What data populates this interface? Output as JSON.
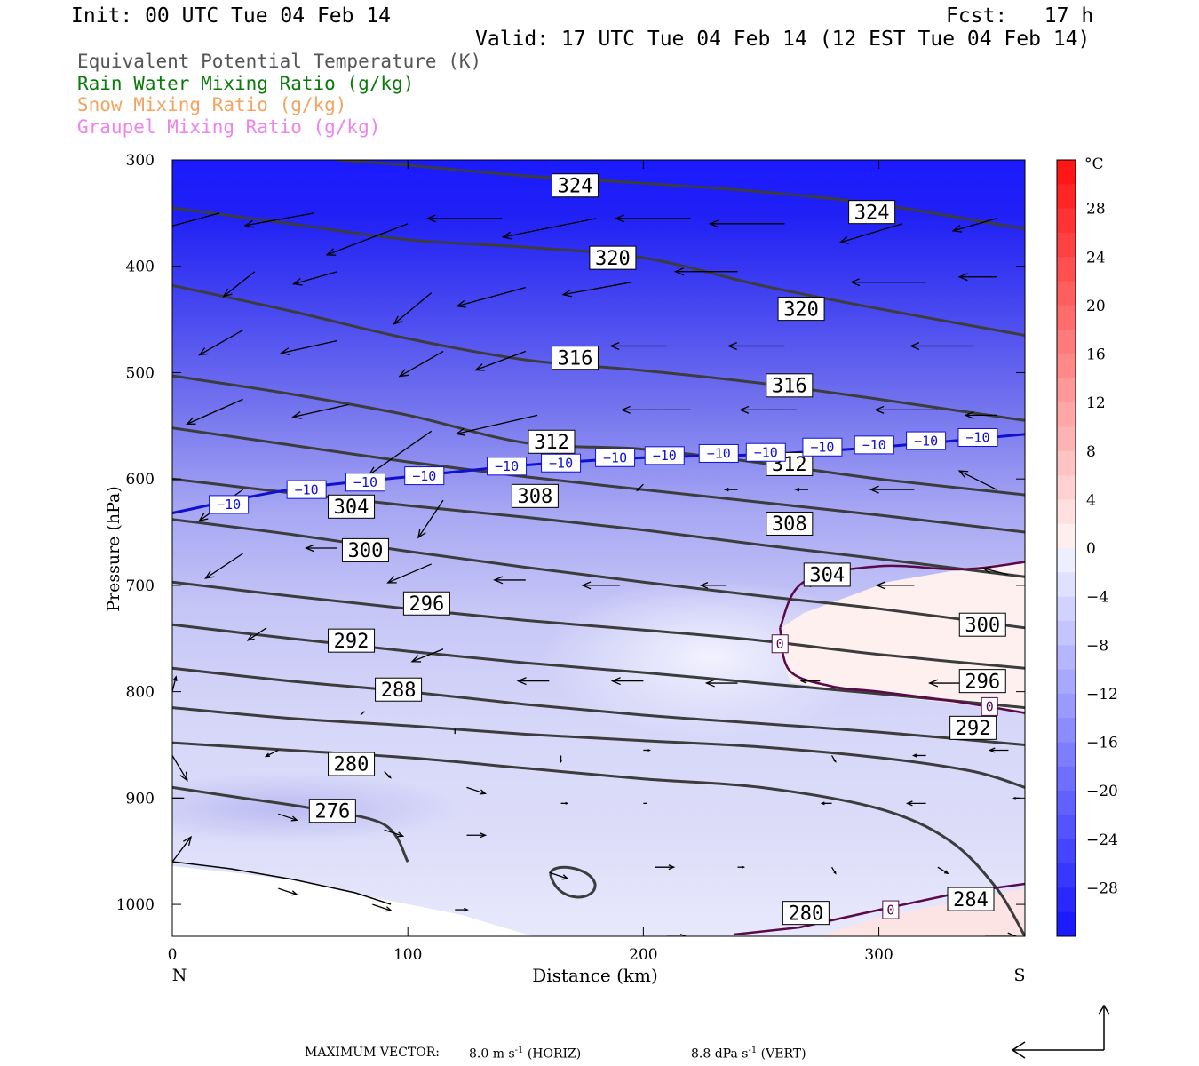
{
  "header": {
    "init": "Init: 00 UTC Tue 04 Feb 14",
    "fcst": "Fcst:   17 h",
    "valid": "Valid: 17 UTC Tue 04 Feb 14 (12 EST Tue 04 Feb 14)"
  },
  "legend": [
    {
      "text": "Equivalent Potential Temperature (K)",
      "color": "#555555"
    },
    {
      "text": "Rain Water Mixing Ratio (g/kg)",
      "color": "#0a7a0a"
    },
    {
      "text": "Snow Mixing Ratio (g/kg)",
      "color": "#f4a460"
    },
    {
      "text": "Graupel Mixing Ratio (g/kg)",
      "color": "#ee82ee"
    }
  ],
  "footer": {
    "max_vector_label": "MAXIMUM VECTOR:",
    "horiz_value": "8.0 m s",
    "horiz_unit": " (HORIZ)",
    "vert_value": "8.8 dPa s",
    "vert_unit": " (VERT)",
    "exponent": "-1"
  },
  "chart_data": {
    "type": "cross-section",
    "xlabel": "Distance (km)",
    "ylabel": "Pressure (hPa)",
    "xlim": [
      0,
      362
    ],
    "ylim": [
      1030,
      300
    ],
    "xticks": [
      0,
      100,
      200,
      300
    ],
    "yticks": [
      300,
      400,
      500,
      600,
      700,
      800,
      900,
      1000
    ],
    "x_endpoints": {
      "left": "N",
      "right": "S"
    },
    "colorbar": {
      "unit": "°C",
      "ticks": [
        28,
        24,
        20,
        16,
        12,
        8,
        4,
        0,
        -4,
        -8,
        -12,
        -16,
        -20,
        -24,
        -28
      ],
      "range": [
        -32,
        32
      ]
    },
    "theta_e_contours": [
      {
        "level": 276,
        "x": [
          0,
          30,
          60,
          90,
          100
        ],
        "p": [
          890,
          900,
          910,
          925,
          960
        ]
      },
      {
        "level": 280,
        "x": [
          0,
          50,
          100,
          150,
          200,
          250,
          300,
          330,
          350,
          362
        ],
        "p": [
          848,
          855,
          862,
          872,
          882,
          890,
          910,
          940,
          985,
          1030
        ]
      },
      {
        "level": 284,
        "x": [
          0,
          50,
          100,
          150,
          200,
          250,
          300,
          340,
          362
        ],
        "p": [
          815,
          825,
          832,
          840,
          846,
          852,
          862,
          875,
          890
        ]
      },
      {
        "level": 288,
        "x": [
          0,
          50,
          100,
          150,
          200,
          250,
          300,
          362
        ],
        "p": [
          778,
          790,
          800,
          812,
          822,
          830,
          838,
          850
        ]
      },
      {
        "level": 292,
        "x": [
          0,
          50,
          100,
          150,
          200,
          250,
          300,
          362
        ],
        "p": [
          737,
          750,
          762,
          773,
          782,
          792,
          802,
          815
        ]
      },
      {
        "level": 296,
        "x": [
          0,
          50,
          100,
          150,
          200,
          250,
          300,
          362
        ],
        "p": [
          697,
          710,
          722,
          733,
          742,
          752,
          765,
          778
        ]
      },
      {
        "level": 300,
        "x": [
          0,
          50,
          100,
          150,
          200,
          250,
          300,
          362
        ],
        "p": [
          638,
          652,
          668,
          683,
          697,
          710,
          722,
          740
        ]
      },
      {
        "level": 304,
        "x": [
          0,
          50,
          100,
          150,
          200,
          250,
          300,
          362
        ],
        "p": [
          600,
          613,
          625,
          636,
          648,
          662,
          675,
          692
        ]
      },
      {
        "level": 308,
        "x": [
          0,
          50,
          100,
          150,
          200,
          250,
          300,
          362
        ],
        "p": [
          552,
          568,
          584,
          598,
          610,
          622,
          634,
          650
        ]
      },
      {
        "level": 312,
        "x": [
          0,
          50,
          100,
          150,
          200,
          250,
          300,
          362
        ],
        "p": [
          503,
          520,
          540,
          566,
          572,
          585,
          600,
          615
        ]
      },
      {
        "level": 316,
        "x": [
          0,
          50,
          100,
          150,
          200,
          250,
          300,
          362
        ],
        "p": [
          418,
          442,
          468,
          488,
          498,
          510,
          525,
          545
        ]
      },
      {
        "level": 320,
        "x": [
          0,
          50,
          100,
          150,
          200,
          250,
          300,
          362
        ],
        "p": [
          345,
          360,
          375,
          382,
          392,
          418,
          440,
          465
        ]
      },
      {
        "level": 324,
        "x": [
          70,
          100,
          150,
          200,
          250,
          300,
          362
        ],
        "p": [
          300,
          305,
          315,
          322,
          330,
          342,
          365
        ]
      }
    ],
    "isotherm_minus10": {
      "level": -10,
      "x": [
        0,
        50,
        100,
        150,
        200,
        250,
        300,
        362
      ],
      "p": [
        632,
        610,
        598,
        587,
        580,
        577,
        570,
        558
      ]
    },
    "isotherm_zero": {
      "level": 0,
      "x": [
        258,
        268,
        300,
        335,
        362
      ],
      "p": [
        740,
        697,
        682,
        685,
        678
      ]
    },
    "isotherm_zero_lower": {
      "level": 0,
      "x": [
        258,
        262,
        280,
        300,
        335,
        362
      ],
      "p": [
        740,
        780,
        795,
        800,
        810,
        820
      ]
    },
    "contour_labels": [
      {
        "text": "324",
        "x": 171,
        "p": 324
      },
      {
        "text": "324",
        "x": 297,
        "p": 349
      },
      {
        "text": "320",
        "x": 187,
        "p": 392
      },
      {
        "text": "320",
        "x": 267,
        "p": 440
      },
      {
        "text": "316",
        "x": 171,
        "p": 486
      },
      {
        "text": "316",
        "x": 262,
        "p": 512
      },
      {
        "text": "312",
        "x": 161,
        "p": 565
      },
      {
        "text": "312",
        "x": 262,
        "p": 586
      },
      {
        "text": "308",
        "x": 154,
        "p": 616
      },
      {
        "text": "308",
        "x": 262,
        "p": 642
      },
      {
        "text": "304",
        "x": 76,
        "p": 626
      },
      {
        "text": "304",
        "x": 278,
        "p": 690
      },
      {
        "text": "300",
        "x": 82,
        "p": 667
      },
      {
        "text": "300",
        "x": 344,
        "p": 737
      },
      {
        "text": "296",
        "x": 108,
        "p": 717
      },
      {
        "text": "296",
        "x": 344,
        "p": 790
      },
      {
        "text": "292",
        "x": 76,
        "p": 752
      },
      {
        "text": "292",
        "x": 340,
        "p": 834
      },
      {
        "text": "288",
        "x": 96,
        "p": 798
      },
      {
        "text": "280",
        "x": 76,
        "p": 868
      },
      {
        "text": "280",
        "x": 269,
        "p": 1008
      },
      {
        "text": "276",
        "x": 68,
        "p": 912
      },
      {
        "text": "284",
        "x": 339,
        "p": 995
      }
    ],
    "minus10_labels": [
      {
        "text": "−10",
        "x": 24,
        "p": 624
      },
      {
        "text": "−10",
        "x": 57,
        "p": 610
      },
      {
        "text": "−10",
        "x": 82,
        "p": 603
      },
      {
        "text": "−10",
        "x": 107,
        "p": 597
      },
      {
        "text": "−10",
        "x": 142,
        "p": 588
      },
      {
        "text": "−10",
        "x": 165,
        "p": 585
      },
      {
        "text": "−10",
        "x": 188,
        "p": 580
      },
      {
        "text": "−10",
        "x": 209,
        "p": 578
      },
      {
        "text": "−10",
        "x": 232,
        "p": 576
      },
      {
        "text": "−10",
        "x": 252,
        "p": 575
      },
      {
        "text": "−10",
        "x": 276,
        "p": 570
      },
      {
        "text": "−10",
        "x": 298,
        "p": 568
      },
      {
        "text": "−10",
        "x": 320,
        "p": 564
      },
      {
        "text": "−10",
        "x": 342,
        "p": 561
      }
    ],
    "zero_labels": [
      {
        "text": "0",
        "x": 258,
        "p": 755
      },
      {
        "text": "0",
        "x": 347,
        "p": 814
      },
      {
        "text": "0",
        "x": 305,
        "p": 1005
      }
    ],
    "wind_vectors": [
      {
        "x": 20,
        "p": 350,
        "u": -5.5,
        "w": -1.5
      },
      {
        "x": 60,
        "p": 350,
        "u": -5.5,
        "w": -1.0
      },
      {
        "x": 100,
        "p": 360,
        "u": -6.5,
        "w": -2.5
      },
      {
        "x": 140,
        "p": 355,
        "u": -6.0,
        "w": 0.0
      },
      {
        "x": 180,
        "p": 355,
        "u": -7.5,
        "w": -1.5
      },
      {
        "x": 220,
        "p": 355,
        "u": -6.0,
        "w": 0.0
      },
      {
        "x": 260,
        "p": 360,
        "u": -6.0,
        "w": 0.0
      },
      {
        "x": 310,
        "p": 360,
        "u": -5.0,
        "w": -1.5
      },
      {
        "x": 350,
        "p": 355,
        "u": -3.5,
        "w": -1.0
      },
      {
        "x": 35,
        "p": 405,
        "u": -2.5,
        "w": -2.0
      },
      {
        "x": 70,
        "p": 405,
        "u": -3.5,
        "w": -1.0
      },
      {
        "x": 110,
        "p": 425,
        "u": -3.0,
        "w": -2.5
      },
      {
        "x": 150,
        "p": 420,
        "u": -5.5,
        "w": -1.5
      },
      {
        "x": 195,
        "p": 415,
        "u": -5.5,
        "w": -1.0
      },
      {
        "x": 240,
        "p": 405,
        "u": -5.0,
        "w": 0.0
      },
      {
        "x": 320,
        "p": 415,
        "u": -6.0,
        "w": 0.0
      },
      {
        "x": 350,
        "p": 410,
        "u": -3.0,
        "w": 0.0
      },
      {
        "x": 30,
        "p": 460,
        "u": -3.5,
        "w": -2.0
      },
      {
        "x": 70,
        "p": 470,
        "u": -4.5,
        "w": -1.0
      },
      {
        "x": 115,
        "p": 480,
        "u": -3.5,
        "w": -2.0
      },
      {
        "x": 150,
        "p": 480,
        "u": -4.0,
        "w": -1.5
      },
      {
        "x": 210,
        "p": 475,
        "u": -4.5,
        "w": 0.0
      },
      {
        "x": 260,
        "p": 475,
        "u": -4.5,
        "w": 0.0
      },
      {
        "x": 340,
        "p": 475,
        "u": -5.0,
        "w": 0.0
      },
      {
        "x": 30,
        "p": 525,
        "u": -4.5,
        "w": -2.0
      },
      {
        "x": 75,
        "p": 530,
        "u": -4.5,
        "w": -1.0
      },
      {
        "x": 110,
        "p": 555,
        "u": -5.0,
        "w": -3.5
      },
      {
        "x": 155,
        "p": 540,
        "u": -6.5,
        "w": -1.5
      },
      {
        "x": 220,
        "p": 535,
        "u": -5.5,
        "w": 0.0
      },
      {
        "x": 265,
        "p": 535,
        "u": -4.5,
        "w": 0.0
      },
      {
        "x": 325,
        "p": 535,
        "u": -5.0,
        "w": 0.0
      },
      {
        "x": 350,
        "p": 540,
        "u": -2.5,
        "w": 0.0
      },
      {
        "x": 30,
        "p": 610,
        "u": -3.5,
        "w": -2.5
      },
      {
        "x": 115,
        "p": 620,
        "u": -2.0,
        "w": -3.0
      },
      {
        "x": 200,
        "p": 605,
        "u": -0.5,
        "w": -0.5
      },
      {
        "x": 240,
        "p": 610,
        "u": -1.0,
        "w": 0.0
      },
      {
        "x": 270,
        "p": 610,
        "u": -1.0,
        "w": 0.0
      },
      {
        "x": 315,
        "p": 610,
        "u": -3.5,
        "w": 0.0
      },
      {
        "x": 350,
        "p": 610,
        "u": -3.0,
        "w": 1.5
      },
      {
        "x": 30,
        "p": 670,
        "u": -3.0,
        "w": -2.0
      },
      {
        "x": 70,
        "p": 665,
        "u": -2.5,
        "w": 0.0
      },
      {
        "x": 110,
        "p": 680,
        "u": -3.5,
        "w": -1.5
      },
      {
        "x": 150,
        "p": 695,
        "u": -2.5,
        "w": 0.0
      },
      {
        "x": 190,
        "p": 700,
        "u": -3.0,
        "w": 0.0
      },
      {
        "x": 235,
        "p": 700,
        "u": -2.0,
        "w": 0.0
      },
      {
        "x": 275,
        "p": 700,
        "u": -1.0,
        "w": 0.0
      },
      {
        "x": 315,
        "p": 700,
        "u": -3.0,
        "w": 0.0
      },
      {
        "x": 355,
        "p": 690,
        "u": -2.0,
        "w": 0.5
      },
      {
        "x": 40,
        "p": 740,
        "u": -1.5,
        "w": -1.0
      },
      {
        "x": 80,
        "p": 745,
        "u": -1.0,
        "w": 0.0
      },
      {
        "x": 115,
        "p": 760,
        "u": -2.5,
        "w": -1.0
      },
      {
        "x": 160,
        "p": 790,
        "u": -2.5,
        "w": 0.0
      },
      {
        "x": 200,
        "p": 790,
        "u": -2.5,
        "w": 0.0
      },
      {
        "x": 240,
        "p": 792,
        "u": -2.5,
        "w": 0.0
      },
      {
        "x": 275,
        "p": 790,
        "u": -1.5,
        "w": 0.0
      },
      {
        "x": 340,
        "p": 792,
        "u": -3.5,
        "w": 0.0
      },
      {
        "x": 0,
        "p": 800,
        "u": 0.3,
        "w": 1.2
      },
      {
        "x": 80,
        "p": 822,
        "u": 0.3,
        "w": 0.3
      },
      {
        "x": 120,
        "p": 835,
        "u": 0.0,
        "w": -0.4
      },
      {
        "x": 45,
        "p": 855,
        "u": -1.0,
        "w": -0.5
      },
      {
        "x": 90,
        "p": 875,
        "u": 0.5,
        "w": -0.5
      },
      {
        "x": 165,
        "p": 860,
        "u": 0.0,
        "w": -0.5
      },
      {
        "x": 200,
        "p": 855,
        "u": 0.5,
        "w": 0.0
      },
      {
        "x": 280,
        "p": 860,
        "u": 0.3,
        "w": -0.5
      },
      {
        "x": 320,
        "p": 860,
        "u": -1.0,
        "w": 0.0
      },
      {
        "x": 355,
        "p": 855,
        "u": -1.5,
        "w": 0.0
      },
      {
        "x": 0,
        "p": 860,
        "u": 1.2,
        "w": -2.0
      },
      {
        "x": 5,
        "p": 900,
        "u": -1.5,
        "w": 0.0
      },
      {
        "x": 45,
        "p": 915,
        "u": 1.5,
        "w": -0.5
      },
      {
        "x": 90,
        "p": 930,
        "u": 1.5,
        "w": -0.5
      },
      {
        "x": 125,
        "p": 890,
        "u": 1.5,
        "w": -0.5
      },
      {
        "x": 165,
        "p": 905,
        "u": 0.5,
        "w": 0.0
      },
      {
        "x": 200,
        "p": 905,
        "u": 0.3,
        "w": 0.0
      },
      {
        "x": 280,
        "p": 905,
        "u": -0.8,
        "w": 0.0
      },
      {
        "x": 320,
        "p": 905,
        "u": -1.5,
        "w": 0.0
      },
      {
        "x": 360,
        "p": 900,
        "u": -0.5,
        "w": 0.0
      },
      {
        "x": 0,
        "p": 960,
        "u": 1.5,
        "w": 2.0
      },
      {
        "x": 125,
        "p": 935,
        "u": 1.5,
        "w": 0.0
      },
      {
        "x": 160,
        "p": 970,
        "u": 1.5,
        "w": -0.5
      },
      {
        "x": 205,
        "p": 965,
        "u": 1.5,
        "w": 0.0
      },
      {
        "x": 240,
        "p": 965,
        "u": 0.5,
        "w": 0.0
      },
      {
        "x": 280,
        "p": 965,
        "u": 0.3,
        "w": -0.5
      },
      {
        "x": 325,
        "p": 965,
        "u": 0.8,
        "w": -0.5
      },
      {
        "x": 45,
        "p": 985,
        "u": 1.5,
        "w": -0.5
      },
      {
        "x": 85,
        "p": 1000,
        "u": 1.5,
        "w": -0.5
      },
      {
        "x": 120,
        "p": 1005,
        "u": 1.0,
        "w": 0.0
      },
      {
        "x": 210,
        "p": 1030,
        "u": 1.5,
        "w": 0.0
      },
      {
        "x": 345,
        "p": 1030,
        "u": 2.5,
        "w": 0.0
      }
    ]
  }
}
